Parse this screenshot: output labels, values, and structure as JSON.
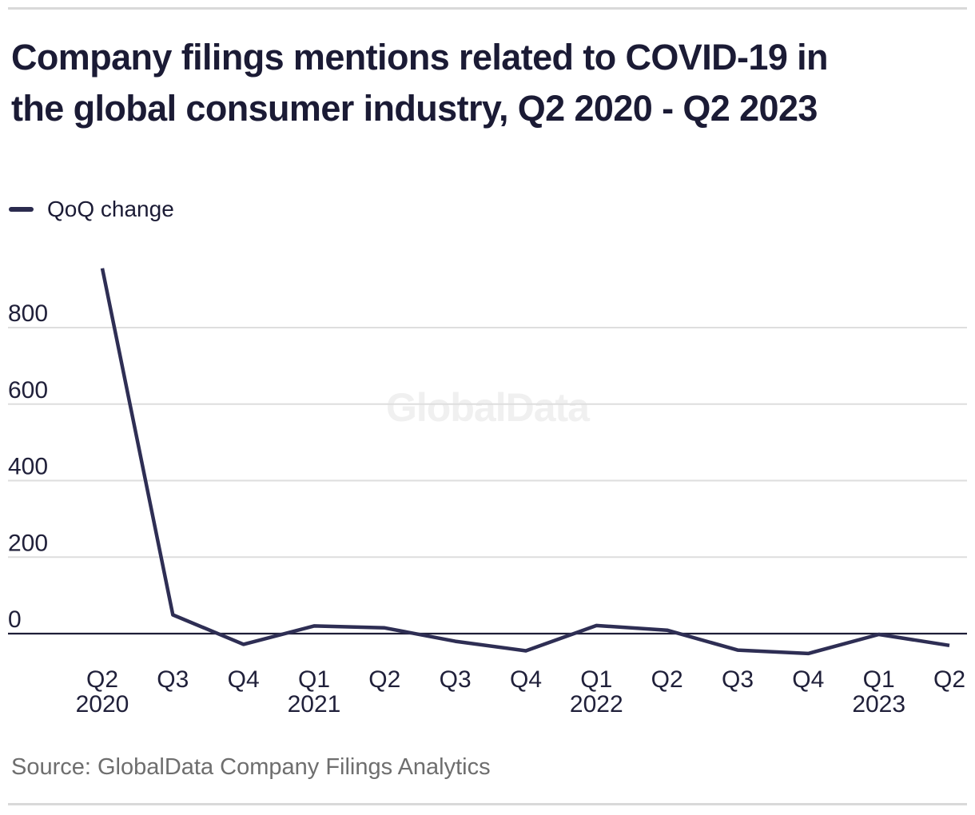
{
  "header": {
    "title": "Company filings mentions related to COVID-19 in the global consumer industry, Q2 2020 - Q2 2023",
    "title_lines": [
      "Company filings mentions related to COVID-19 in",
      "the global consumer industry, Q2 2020 - Q2 2023"
    ]
  },
  "legend": {
    "label": "QoQ change"
  },
  "footer": {
    "source": "Source: GlobalData Company Filings Analytics"
  },
  "colors": {
    "line": "#2e2e54",
    "title_text": "#1b1b35",
    "zero_axis": "#1e1e38",
    "gridline": "#dedede",
    "tick_text": "#20203a",
    "source_text": "#6e6e6e",
    "watermark": "#f0f0f0",
    "divider": "#d9d9d9"
  },
  "chart_data": {
    "type": "line",
    "title": "Company filings mentions related to COVID-19 in the global consumer industry, Q2 2020 - Q2 2023",
    "watermark": "GlobalData",
    "categories": [
      "Q2 2020",
      "Q3 2020",
      "Q4 2020",
      "Q1 2021",
      "Q2 2021",
      "Q3 2021",
      "Q4 2021",
      "Q1 2022",
      "Q2 2022",
      "Q3 2022",
      "Q4 2022",
      "Q1 2023",
      "Q2 2023"
    ],
    "x_ticks": [
      {
        "quarter": "Q2",
        "year": "2020"
      },
      {
        "quarter": "Q3"
      },
      {
        "quarter": "Q4"
      },
      {
        "quarter": "Q1",
        "year": "2021"
      },
      {
        "quarter": "Q2"
      },
      {
        "quarter": "Q3"
      },
      {
        "quarter": "Q4"
      },
      {
        "quarter": "Q1",
        "year": "2022"
      },
      {
        "quarter": "Q2"
      },
      {
        "quarter": "Q3"
      },
      {
        "quarter": "Q4"
      },
      {
        "quarter": "Q1",
        "year": "2023"
      },
      {
        "quarter": "Q2"
      }
    ],
    "series": [
      {
        "name": "QoQ change",
        "values": [
          955,
          49,
          -28,
          20,
          15,
          -20,
          -45,
          21,
          9,
          -43,
          -52,
          -2,
          -31
        ]
      }
    ],
    "yticks": [
      800,
      600,
      400,
      200,
      0
    ],
    "ylim": [
      -100,
      1010
    ],
    "grid": "horizontal-only",
    "legend_position": "top-left",
    "xlabel": "",
    "ylabel": ""
  }
}
